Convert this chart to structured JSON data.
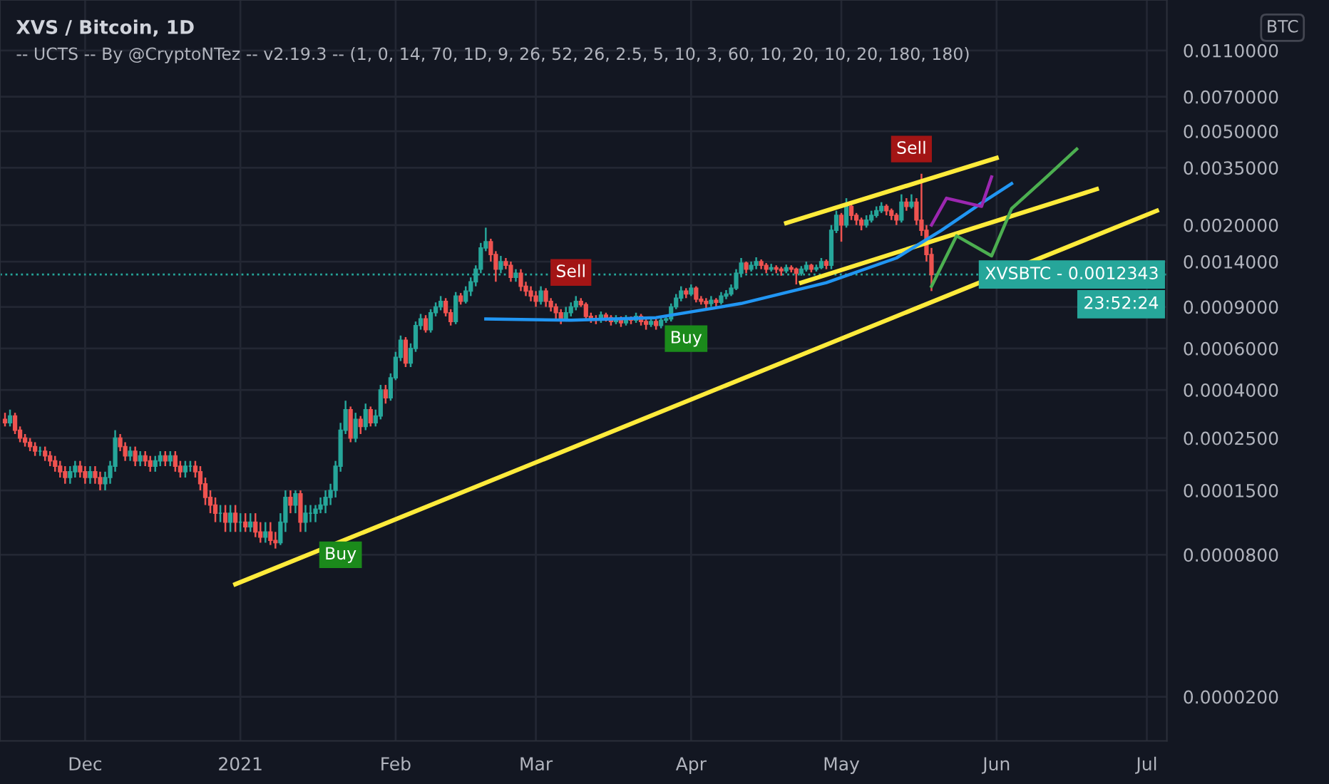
{
  "chart_data": {
    "type": "candlestick",
    "title": "XVS / Bitcoin, 1D",
    "subtitle": "-- UCTS -- By @CryptoNTez -- v2.19.3 -- (1, 0, 14, 70, 1D, 9, 26, 52, 26, 2.5, 5, 10, 3, 60, 10, 20, 10, 20, 180, 180)",
    "x": [
      "2020-11-15",
      "2020-11-16",
      "2020-11-17",
      "2020-11-18",
      "2020-11-19",
      "2020-11-20",
      "2020-11-21",
      "2020-11-22",
      "2020-11-23",
      "2020-11-24",
      "2020-11-25",
      "2020-11-26",
      "2020-11-27",
      "2020-11-28",
      "2020-11-29",
      "2020-11-30",
      "2020-12-01",
      "2020-12-02",
      "2020-12-03",
      "2020-12-04",
      "2020-12-05",
      "2020-12-06",
      "2020-12-07",
      "2020-12-08",
      "2020-12-09",
      "2020-12-10",
      "2020-12-11",
      "2020-12-12",
      "2020-12-13",
      "2020-12-14",
      "2020-12-15",
      "2020-12-16",
      "2020-12-17",
      "2020-12-18",
      "2020-12-19",
      "2020-12-20",
      "2020-12-21",
      "2020-12-22",
      "2020-12-23",
      "2020-12-24",
      "2020-12-25",
      "2020-12-26",
      "2020-12-27",
      "2020-12-28",
      "2020-12-29",
      "2020-12-30",
      "2020-12-31",
      "2021-01-01",
      "2021-01-02",
      "2021-01-03",
      "2021-01-04",
      "2021-01-05",
      "2021-01-06",
      "2021-01-07",
      "2021-01-08",
      "2021-01-09",
      "2021-01-10",
      "2021-01-11",
      "2021-01-12",
      "2021-01-13",
      "2021-01-14",
      "2021-01-15",
      "2021-01-16",
      "2021-01-17",
      "2021-01-18",
      "2021-01-19",
      "2021-01-20",
      "2021-01-21",
      "2021-01-22",
      "2021-01-23",
      "2021-01-24",
      "2021-01-25",
      "2021-01-26",
      "2021-01-27",
      "2021-01-28",
      "2021-01-29",
      "2021-01-30",
      "2021-01-31",
      "2021-02-01",
      "2021-02-02",
      "2021-02-03",
      "2021-02-04",
      "2021-02-05",
      "2021-02-06",
      "2021-02-07",
      "2021-02-08",
      "2021-02-09",
      "2021-02-10",
      "2021-02-11",
      "2021-02-12",
      "2021-02-13",
      "2021-02-14",
      "2021-02-15",
      "2021-02-16",
      "2021-02-17",
      "2021-02-18",
      "2021-02-19",
      "2021-02-20",
      "2021-02-21",
      "2021-02-22",
      "2021-02-23",
      "2021-02-24",
      "2021-02-25",
      "2021-02-26",
      "2021-02-27",
      "2021-02-28",
      "2021-03-01",
      "2021-03-02",
      "2021-03-03",
      "2021-03-04",
      "2021-03-05",
      "2021-03-06",
      "2021-03-07",
      "2021-03-08",
      "2021-03-09",
      "2021-03-10",
      "2021-03-11",
      "2021-03-12",
      "2021-03-13",
      "2021-03-14",
      "2021-03-15",
      "2021-03-16",
      "2021-03-17",
      "2021-03-18",
      "2021-03-19",
      "2021-03-20",
      "2021-03-21",
      "2021-03-22",
      "2021-03-23",
      "2021-03-24",
      "2021-03-25",
      "2021-03-26",
      "2021-03-27",
      "2021-03-28",
      "2021-03-29",
      "2021-03-30",
      "2021-03-31",
      "2021-04-01",
      "2021-04-02",
      "2021-04-03",
      "2021-04-04",
      "2021-04-05",
      "2021-04-06",
      "2021-04-07",
      "2021-04-08",
      "2021-04-09",
      "2021-04-10",
      "2021-04-11",
      "2021-04-12",
      "2021-04-13",
      "2021-04-14",
      "2021-04-15",
      "2021-04-16",
      "2021-04-17",
      "2021-04-18",
      "2021-04-19",
      "2021-04-20",
      "2021-04-21",
      "2021-04-22",
      "2021-04-23",
      "2021-04-24",
      "2021-04-25",
      "2021-04-26",
      "2021-04-27",
      "2021-04-28",
      "2021-04-29",
      "2021-04-30",
      "2021-05-01",
      "2021-05-02",
      "2021-05-03",
      "2021-05-04",
      "2021-05-05",
      "2021-05-06",
      "2021-05-07",
      "2021-05-08",
      "2021-05-09",
      "2021-05-10",
      "2021-05-11",
      "2021-05-12",
      "2021-05-13",
      "2021-05-14",
      "2021-05-15",
      "2021-05-16",
      "2021-05-17",
      "2021-05-18",
      "2021-05-19"
    ],
    "ohlc": [
      [
        0.0003,
        0.00032,
        0.00028,
        0.00029
      ],
      [
        0.00029,
        0.00033,
        0.00028,
        0.00031
      ],
      [
        0.00031,
        0.00032,
        0.00026,
        0.00027
      ],
      [
        0.00027,
        0.00028,
        0.00024,
        0.00025
      ],
      [
        0.00025,
        0.00026,
        0.00023,
        0.00024
      ],
      [
        0.00024,
        0.00025,
        0.00022,
        0.00023
      ],
      [
        0.00023,
        0.00024,
        0.00021,
        0.00022
      ],
      [
        0.00022,
        0.00023,
        0.00021,
        0.00022
      ],
      [
        0.00022,
        0.00023,
        0.0002,
        0.00021
      ],
      [
        0.00021,
        0.00022,
        0.00019,
        0.0002
      ],
      [
        0.0002,
        0.00021,
        0.00018,
        0.00019
      ],
      [
        0.00019,
        0.0002,
        0.00017,
        0.00018
      ],
      [
        0.00018,
        0.00019,
        0.00016,
        0.00017
      ],
      [
        0.00017,
        0.00019,
        0.00016,
        0.00018
      ],
      [
        0.00018,
        0.0002,
        0.00017,
        0.00019
      ],
      [
        0.00019,
        0.0002,
        0.00017,
        0.00018
      ],
      [
        0.00018,
        0.00019,
        0.00016,
        0.00017
      ],
      [
        0.00017,
        0.00019,
        0.00016,
        0.00018
      ],
      [
        0.00018,
        0.00019,
        0.00016,
        0.00017
      ],
      [
        0.00017,
        0.00018,
        0.00015,
        0.00016
      ],
      [
        0.00016,
        0.00018,
        0.00015,
        0.00017
      ],
      [
        0.00017,
        0.0002,
        0.00016,
        0.00019
      ],
      [
        0.00019,
        0.00027,
        0.00018,
        0.00025
      ],
      [
        0.00025,
        0.00026,
        0.00022,
        0.00023
      ],
      [
        0.00023,
        0.00024,
        0.0002,
        0.00021
      ],
      [
        0.00021,
        0.00023,
        0.0002,
        0.00022
      ],
      [
        0.00022,
        0.00023,
        0.00019,
        0.0002
      ],
      [
        0.0002,
        0.00022,
        0.00019,
        0.00021
      ],
      [
        0.00021,
        0.00022,
        0.00019,
        0.0002
      ],
      [
        0.0002,
        0.00021,
        0.00018,
        0.00019
      ],
      [
        0.00019,
        0.00021,
        0.00018,
        0.0002
      ],
      [
        0.0002,
        0.00022,
        0.00019,
        0.00021
      ],
      [
        0.00021,
        0.00022,
        0.00019,
        0.0002
      ],
      [
        0.0002,
        0.00022,
        0.00019,
        0.00021
      ],
      [
        0.00021,
        0.00022,
        0.00018,
        0.00019
      ],
      [
        0.00019,
        0.0002,
        0.00017,
        0.00018
      ],
      [
        0.00018,
        0.0002,
        0.00017,
        0.00019
      ],
      [
        0.00019,
        0.0002,
        0.00018,
        0.00019
      ],
      [
        0.00019,
        0.0002,
        0.00017,
        0.00018
      ],
      [
        0.00018,
        0.00019,
        0.00015,
        0.00016
      ],
      [
        0.00016,
        0.00017,
        0.00013,
        0.00014
      ],
      [
        0.00014,
        0.00015,
        0.00012,
        0.00013
      ],
      [
        0.00013,
        0.00014,
        0.00011,
        0.00012
      ],
      [
        0.00012,
        0.00013,
        0.00011,
        0.00012
      ],
      [
        0.00012,
        0.00013,
        0.0001,
        0.00011
      ],
      [
        0.00011,
        0.00013,
        0.0001,
        0.00012
      ],
      [
        0.00012,
        0.00013,
        0.0001,
        0.00011
      ],
      [
        0.00011,
        0.00012,
        0.0001,
        0.00011
      ],
      [
        0.00011,
        0.00012,
        0.0001,
        0.000105
      ],
      [
        0.000105,
        0.00012,
        0.0001,
        0.00011
      ],
      [
        0.00011,
        0.00012,
        9.5e-05,
        0.0001
      ],
      [
        0.0001,
        0.00011,
        9e-05,
        9.5e-05
      ],
      [
        9.5e-05,
        0.00011,
        9e-05,
        0.0001
      ],
      [
        0.0001,
        0.00011,
        8.8e-05,
        9.2e-05
      ],
      [
        9.2e-05,
        0.0001,
        8.5e-05,
        9e-05
      ],
      [
        9e-05,
        0.00012,
        8.8e-05,
        0.00011
      ],
      [
        0.00011,
        0.00015,
        0.0001,
        0.00014
      ],
      [
        0.00014,
        0.00015,
        0.00012,
        0.00013
      ],
      [
        0.00013,
        0.00015,
        0.00012,
        0.000145
      ],
      [
        0.000145,
        0.00015,
        0.0001,
        0.00011
      ],
      [
        0.00011,
        0.00013,
        0.0001,
        0.00012
      ],
      [
        0.00012,
        0.00013,
        0.00011,
        0.00012
      ],
      [
        0.00012,
        0.00013,
        0.00011,
        0.000125
      ],
      [
        0.000125,
        0.00014,
        0.00012,
        0.00013
      ],
      [
        0.00013,
        0.00015,
        0.00012,
        0.00014
      ],
      [
        0.00014,
        0.00016,
        0.00013,
        0.00015
      ],
      [
        0.00015,
        0.0002,
        0.00014,
        0.00019
      ],
      [
        0.00019,
        0.00029,
        0.00018,
        0.00027
      ],
      [
        0.00027,
        0.00036,
        0.00026,
        0.00033
      ],
      [
        0.00033,
        0.00034,
        0.00024,
        0.00025
      ],
      [
        0.00025,
        0.00032,
        0.00024,
        0.0003
      ],
      [
        0.0003,
        0.00031,
        0.00026,
        0.00028
      ],
      [
        0.00028,
        0.00035,
        0.00027,
        0.00033
      ],
      [
        0.00033,
        0.00034,
        0.00028,
        0.00029
      ],
      [
        0.00029,
        0.00033,
        0.00028,
        0.00031
      ],
      [
        0.00031,
        0.00042,
        0.0003,
        0.0004
      ],
      [
        0.0004,
        0.00042,
        0.00035,
        0.00037
      ],
      [
        0.00037,
        0.00047,
        0.00036,
        0.00045
      ],
      [
        0.00045,
        0.00058,
        0.00044,
        0.00055
      ],
      [
        0.00055,
        0.00068,
        0.00053,
        0.00065
      ],
      [
        0.00065,
        0.00067,
        0.0005,
        0.00052
      ],
      [
        0.00052,
        0.00063,
        0.0005,
        0.0006
      ],
      [
        0.0006,
        0.00078,
        0.00058,
        0.00075
      ],
      [
        0.00075,
        0.00084,
        0.00072,
        0.0008
      ],
      [
        0.0008,
        0.00083,
        0.0007,
        0.00072
      ],
      [
        0.00072,
        0.00088,
        0.0007,
        0.00085
      ],
      [
        0.00085,
        0.00094,
        0.00082,
        0.0009
      ],
      [
        0.0009,
        0.001,
        0.00087,
        0.00095
      ],
      [
        0.00095,
        0.00098,
        0.00082,
        0.00085
      ],
      [
        0.00085,
        0.00088,
        0.00075,
        0.00078
      ],
      [
        0.00078,
        0.00104,
        0.00076,
        0.001
      ],
      [
        0.001,
        0.00103,
        0.00092,
        0.00095
      ],
      [
        0.00095,
        0.0011,
        0.00093,
        0.00105
      ],
      [
        0.00105,
        0.0012,
        0.001,
        0.00115
      ],
      [
        0.00115,
        0.00135,
        0.0011,
        0.0013
      ],
      [
        0.0013,
        0.00168,
        0.00125,
        0.0016
      ],
      [
        0.0016,
        0.00195,
        0.00155,
        0.0017
      ],
      [
        0.0017,
        0.00175,
        0.0014,
        0.0015
      ],
      [
        0.0015,
        0.00155,
        0.00115,
        0.0013
      ],
      [
        0.0013,
        0.00148,
        0.00125,
        0.0014
      ],
      [
        0.0014,
        0.00145,
        0.0013,
        0.00135
      ],
      [
        0.00135,
        0.0014,
        0.00115,
        0.0012
      ],
      [
        0.0012,
        0.0013,
        0.00115,
        0.00125
      ],
      [
        0.00125,
        0.0013,
        0.00105,
        0.0011
      ],
      [
        0.0011,
        0.00115,
        0.001,
        0.00105
      ],
      [
        0.00105,
        0.0011,
        0.00095,
        0.001
      ],
      [
        0.001,
        0.00105,
        0.0009,
        0.00095
      ],
      [
        0.00095,
        0.0011,
        0.00092,
        0.00105
      ],
      [
        0.00105,
        0.00108,
        0.0009,
        0.00095
      ],
      [
        0.00095,
        0.00098,
        0.00086,
        0.0009
      ],
      [
        0.0009,
        0.00093,
        0.0008,
        0.00085
      ],
      [
        0.00085,
        0.00088,
        0.00076,
        0.0008
      ],
      [
        0.0008,
        0.0009,
        0.00078,
        0.00085
      ],
      [
        0.00085,
        0.00094,
        0.00082,
        0.0009
      ],
      [
        0.0009,
        0.001,
        0.00087,
        0.00095
      ],
      [
        0.00095,
        0.00098,
        0.0009,
        0.00092
      ],
      [
        0.00092,
        0.00094,
        0.0008,
        0.00082
      ],
      [
        0.00082,
        0.00085,
        0.00077,
        0.0008
      ],
      [
        0.0008,
        0.00083,
        0.00076,
        0.00079
      ],
      [
        0.00079,
        0.00086,
        0.00077,
        0.00083
      ],
      [
        0.00083,
        0.00085,
        0.00078,
        0.00081
      ],
      [
        0.00081,
        0.00083,
        0.00075,
        0.00078
      ],
      [
        0.00078,
        0.00083,
        0.00076,
        0.0008
      ],
      [
        0.0008,
        0.00082,
        0.00074,
        0.00077
      ],
      [
        0.00077,
        0.00083,
        0.00075,
        0.0008
      ],
      [
        0.0008,
        0.00082,
        0.00076,
        0.00079
      ],
      [
        0.00079,
        0.00085,
        0.00077,
        0.00082
      ],
      [
        0.00082,
        0.00084,
        0.00075,
        0.00078
      ],
      [
        0.00078,
        0.0008,
        0.00072,
        0.00076
      ],
      [
        0.00076,
        0.00081,
        0.00074,
        0.00078
      ],
      [
        0.00078,
        0.0008,
        0.00072,
        0.00075
      ],
      [
        0.00075,
        0.00082,
        0.00073,
        0.00079
      ],
      [
        0.00079,
        0.00083,
        0.00077,
        0.0008
      ],
      [
        0.0008,
        0.00093,
        0.00078,
        0.0009
      ],
      [
        0.0009,
        0.00102,
        0.00088,
        0.00098
      ],
      [
        0.00098,
        0.0011,
        0.00095,
        0.00105
      ],
      [
        0.00105,
        0.00108,
        0.00098,
        0.00102
      ],
      [
        0.00102,
        0.00112,
        0.001,
        0.00108
      ],
      [
        0.00108,
        0.0011,
        0.00094,
        0.00097
      ],
      [
        0.00097,
        0.001,
        0.00092,
        0.00095
      ],
      [
        0.00095,
        0.00098,
        0.00088,
        0.00093
      ],
      [
        0.00093,
        0.001,
        0.0009,
        0.00096
      ],
      [
        0.00096,
        0.00098,
        0.0009,
        0.00094
      ],
      [
        0.00094,
        0.00104,
        0.00092,
        0.001
      ],
      [
        0.001,
        0.00106,
        0.00097,
        0.00102
      ],
      [
        0.00102,
        0.00112,
        0.001,
        0.00108
      ],
      [
        0.00108,
        0.0013,
        0.00106,
        0.00125
      ],
      [
        0.00125,
        0.00145,
        0.0012,
        0.00138
      ],
      [
        0.00138,
        0.0014,
        0.00125,
        0.0013
      ],
      [
        0.0013,
        0.0014,
        0.00127,
        0.00135
      ],
      [
        0.00135,
        0.00146,
        0.0013,
        0.0014
      ],
      [
        0.0014,
        0.00143,
        0.0013,
        0.00135
      ],
      [
        0.00135,
        0.00138,
        0.00125,
        0.0013
      ],
      [
        0.0013,
        0.00137,
        0.00127,
        0.00132
      ],
      [
        0.00132,
        0.00135,
        0.00125,
        0.0013
      ],
      [
        0.0013,
        0.00133,
        0.00122,
        0.00128
      ],
      [
        0.00128,
        0.00136,
        0.00125,
        0.00132
      ],
      [
        0.00132,
        0.00135,
        0.00126,
        0.0013
      ],
      [
        0.0013,
        0.00132,
        0.00112,
        0.00125
      ],
      [
        0.00125,
        0.00134,
        0.00122,
        0.0013
      ],
      [
        0.0013,
        0.0014,
        0.00127,
        0.00135
      ],
      [
        0.00135,
        0.00137,
        0.00126,
        0.0013
      ],
      [
        0.0013,
        0.00136,
        0.00127,
        0.00132
      ],
      [
        0.00132,
        0.00145,
        0.0013,
        0.0014
      ],
      [
        0.0014,
        0.00143,
        0.0013,
        0.00135
      ],
      [
        0.00135,
        0.002,
        0.0013,
        0.0019
      ],
      [
        0.0019,
        0.0023,
        0.00185,
        0.0022
      ],
      [
        0.0022,
        0.00225,
        0.0017,
        0.002
      ],
      [
        0.002,
        0.0026,
        0.00195,
        0.0024
      ],
      [
        0.0024,
        0.00245,
        0.0021,
        0.0022
      ],
      [
        0.0022,
        0.00225,
        0.002,
        0.0021
      ],
      [
        0.0021,
        0.00215,
        0.0019,
        0.002
      ],
      [
        0.002,
        0.0022,
        0.00195,
        0.0021
      ],
      [
        0.0021,
        0.0023,
        0.00205,
        0.0022
      ],
      [
        0.0022,
        0.0024,
        0.00215,
        0.0023
      ],
      [
        0.0023,
        0.0025,
        0.00225,
        0.0024
      ],
      [
        0.0024,
        0.00245,
        0.0022,
        0.0023
      ],
      [
        0.0023,
        0.00235,
        0.0021,
        0.0022
      ],
      [
        0.0022,
        0.00225,
        0.002,
        0.0021
      ],
      [
        0.0021,
        0.0027,
        0.00205,
        0.0025
      ],
      [
        0.0025,
        0.0026,
        0.0023,
        0.0024
      ],
      [
        0.0024,
        0.0027,
        0.00235,
        0.0025
      ],
      [
        0.0025,
        0.0026,
        0.002,
        0.0021
      ],
      [
        0.0021,
        0.0033,
        0.0018,
        0.0019
      ],
      [
        0.0019,
        0.002,
        0.0014,
        0.0015
      ],
      [
        0.0015,
        0.0016,
        0.00105,
        0.0012343
      ]
    ],
    "series": [
      {
        "type": "line",
        "color": "#ffeb3b",
        "x": [
          "2020-12-31",
          "2021-07-03"
        ],
        "values": [
          6e-05,
          0.0023
        ]
      },
      {
        "type": "line",
        "color": "#ffeb3b",
        "x": [
          "2021-04-23",
          "2021-06-21"
        ],
        "values": [
          0.00114,
          0.00284
        ]
      },
      {
        "type": "line",
        "color": "#ffeb3b",
        "x": [
          "2021-04-20",
          "2021-06-01"
        ],
        "values": [
          0.00204,
          0.00385
        ]
      },
      {
        "type": "line",
        "color": "#2196f3",
        "x": [
          "2021-02-19",
          "2021-03-08",
          "2021-03-25",
          "2021-04-11",
          "2021-04-28",
          "2021-05-12",
          "2021-05-21",
          "2021-05-29",
          "2021-06-04"
        ],
        "values": [
          0.0008,
          0.00079,
          0.00081,
          0.00093,
          0.00114,
          0.00145,
          0.0019,
          0.00248,
          0.003
        ]
      },
      {
        "type": "line",
        "color": "#4caf50",
        "x": [
          "2021-05-19",
          "2021-05-24",
          "2021-05-31",
          "2021-06-04",
          "2021-06-11",
          "2021-06-17"
        ],
        "values": [
          0.0011,
          0.0018,
          0.00148,
          0.00235,
          0.0032,
          0.0042
        ]
      },
      {
        "type": "line",
        "color": "#9c27b0",
        "x": [
          "2021-05-19",
          "2021-05-22",
          "2021-05-29",
          "2021-05-31"
        ],
        "values": [
          0.002,
          0.0026,
          0.0024,
          0.0032
        ]
      }
    ],
    "annotations": [
      {
        "text": "Buy",
        "x": "2021-01-21",
        "y": 8e-05
      },
      {
        "text": "Sell",
        "x": "2021-03-08",
        "y": 0.00126
      },
      {
        "text": "Buy",
        "x": "2021-03-31",
        "y": 0.00066
      },
      {
        "text": "Sell",
        "x": "2021-05-15",
        "y": 0.0042
      },
      "23:52:24",
      "BTC"
    ],
    "ref_lines": [
      {
        "axis": "y",
        "value": 0.0012343,
        "label": "XVSBTC - 0.0012343",
        "color": "#26a69a",
        "line_style": "dotted"
      }
    ],
    "log": true,
    "grid": true,
    "xlim": [
      "2020-11-14",
      "2021-07-05"
    ],
    "xticks": [
      {
        "value": "2020-12-01",
        "label": "Dec"
      },
      {
        "value": "2021-01-01",
        "label": "2021"
      },
      {
        "value": "2021-02-01",
        "label": "Feb"
      },
      {
        "value": "2021-03-01",
        "label": "Mar"
      },
      {
        "value": "2021-04-01",
        "label": "Apr"
      },
      {
        "value": "2021-05-01",
        "label": "May"
      },
      {
        "value": "2021-06-01",
        "label": "Jun"
      },
      {
        "value": "2021-07-01",
        "label": "Jul"
      }
    ],
    "ylim": [
      1.3e-05,
      0.018
    ],
    "yticks": [
      {
        "value": 2e-05,
        "label": "0.0000200"
      },
      {
        "value": 8e-05,
        "label": "0.0000800"
      },
      {
        "value": 0.00015,
        "label": "0.0001500"
      },
      {
        "value": 0.00025,
        "label": "0.0002500"
      },
      {
        "value": 0.0004,
        "label": "0.0004000"
      },
      {
        "value": 0.0006,
        "label": "0.0006000"
      },
      {
        "value": 0.0009,
        "label": "0.0009000"
      },
      {
        "value": 0.0014,
        "label": "0.0014000"
      },
      {
        "value": 0.002,
        "label": "0.0020000"
      },
      {
        "value": 0.0035,
        "label": "0.0035000"
      },
      {
        "value": 0.005,
        "label": "0.0050000"
      },
      {
        "value": 0.007,
        "label": "0.0070000"
      },
      {
        "value": 0.011,
        "label": "0.0110000"
      }
    ]
  }
}
